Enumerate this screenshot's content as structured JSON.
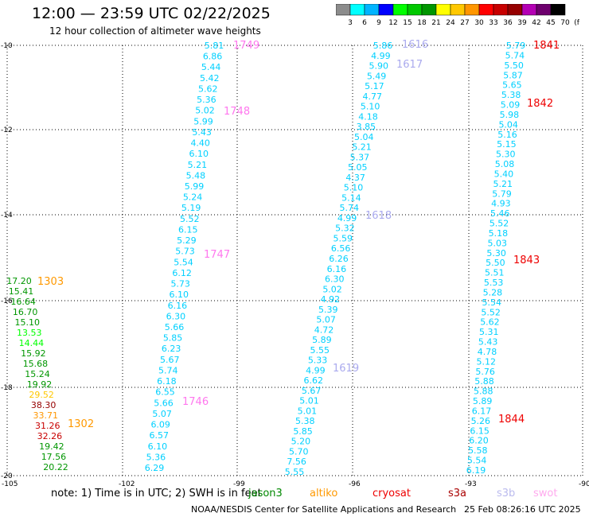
{
  "title": "12:00 — 23:59 UTC 02/22/2025",
  "subtitle": "12 hour collection of altimeter wave heights",
  "scale": {
    "labels": [
      "3",
      "6",
      "9",
      "12",
      "15",
      "18",
      "21",
      "24",
      "27",
      "30",
      "33",
      "36",
      "39",
      "42",
      "45",
      "70",
      "(ft)"
    ],
    "colors": [
      "#8c8c8c",
      "#00ffff",
      "#00b4ff",
      "#0000ff",
      "#00ff00",
      "#00c800",
      "#009600",
      "#ffff00",
      "#ffc800",
      "#ff9600",
      "#ff0000",
      "#c80000",
      "#960000",
      "#b400b4",
      "#6e006e",
      "#000000"
    ]
  },
  "axes": {
    "x_ticks": [
      "-105",
      "-102",
      "-99",
      "-96",
      "-93",
      "-90"
    ],
    "y_ticks": [
      "-10",
      "-12",
      "-14",
      "-16",
      "-18",
      "-20"
    ]
  },
  "tracks": [
    {
      "id": "t1749",
      "values": [
        "5.81",
        "6.86",
        "5.44",
        "5.42",
        "5.62",
        "5.36",
        "5.02",
        "5.99",
        "5.43",
        "4.40",
        "6.10",
        "5.21",
        "5.48",
        "5.99",
        "5.24",
        "5.19",
        "5.52",
        "6.15",
        "5.29",
        "5.73",
        "5.54",
        "6.12",
        "5.73",
        "6.10",
        "6.16",
        "6.30",
        "5.66",
        "5.85",
        "6.23",
        "5.67",
        "5.74",
        "6.18",
        "6.55",
        "5.66",
        "5.07",
        "6.09",
        "6.57",
        "6.10",
        "5.36",
        "6.29"
      ]
    },
    {
      "id": "t1616",
      "values": [
        "5.86",
        "4.99",
        "5.90",
        "5.49",
        "5.17",
        "4.77",
        "5.10",
        "4.18",
        "3.85",
        "5.04",
        "5.21",
        "5.37",
        "5.05",
        "4.37",
        "5.10",
        "5.14",
        "5.74",
        "4.99",
        "5.32",
        "5.59",
        "6.56",
        "6.26",
        "6.16",
        "6.30",
        "5.02",
        "4.92",
        "5.39",
        "5.07",
        "4.72",
        "5.89",
        "5.55",
        "5.33",
        "4.99",
        "6.62",
        "5.67",
        "5.01",
        "5.01",
        "5.38",
        "5.85",
        "5.20",
        "5.70",
        "7.56",
        "5.55"
      ]
    },
    {
      "id": "t1841",
      "values": [
        "5.79",
        "5.74",
        "5.50",
        "5.87",
        "5.65",
        "5.38",
        "5.09",
        "5.98",
        "5.04",
        "5.16",
        "5.15",
        "5.30",
        "5.08",
        "5.40",
        "5.21",
        "5.79",
        "4.93",
        "5.46",
        "5.52",
        "5.18",
        "5.03",
        "5.30",
        "5.50",
        "5.51",
        "5.53",
        "5.28",
        "5.54",
        "5.52",
        "5.62",
        "5.31",
        "5.43",
        "4.78",
        "5.12",
        "5.76",
        "5.88",
        "5.88",
        "5.89",
        "6.17",
        "5.26",
        "6.15",
        "6.20",
        "5.58",
        "5.54",
        "6.19"
      ]
    },
    {
      "id": "t1303",
      "values": [
        "17.20",
        "15.41",
        "16.64",
        "16.70",
        "15.10",
        "13.53",
        "14.44",
        "15.92",
        "15.68",
        "15.24",
        "19.92",
        "29.52",
        "38.30",
        "33.71",
        "31.26",
        "32.26",
        "19.42",
        "17.56",
        "20.22"
      ],
      "colors": [
        "#009600",
        "#009600",
        "#009600",
        "#009600",
        "#009600",
        "#00ff00",
        "#00ff00",
        "#009600",
        "#009600",
        "#009600",
        "#009600",
        "#ffc800",
        "#960000",
        "#ff9600",
        "#c80000",
        "#c80000",
        "#009600",
        "#009600",
        "#009600"
      ]
    }
  ],
  "pass_labels": [
    {
      "text": "1749",
      "color": "#ff77ee"
    },
    {
      "text": "1748",
      "color": "#ff77ee"
    },
    {
      "text": "1747",
      "color": "#ff77ee"
    },
    {
      "text": "1746",
      "color": "#ff77ee"
    },
    {
      "text": "1616",
      "color": "#aaaaee"
    },
    {
      "text": "1617",
      "color": "#aaaaee"
    },
    {
      "text": "1618",
      "color": "#aaaaee"
    },
    {
      "text": "1619",
      "color": "#aaaaee"
    },
    {
      "text": "1841",
      "color": "#ee0000"
    },
    {
      "text": "1842",
      "color": "#ee0000"
    },
    {
      "text": "1843",
      "color": "#ee0000"
    },
    {
      "text": "1844",
      "color": "#ee0000"
    },
    {
      "text": "1303",
      "color": "#ff9900"
    },
    {
      "text": "1302",
      "color": "#ff9900"
    }
  ],
  "track_color": "#00d0ff",
  "note": "note:  1) Time is in UTC;  2) SWH is in feet",
  "legend": [
    {
      "name": "jason3",
      "color": "#008800"
    },
    {
      "name": "altiko",
      "color": "#ff9900"
    },
    {
      "name": "cryosat",
      "color": "#ee0000"
    },
    {
      "name": "s3a",
      "color": "#aa0000"
    },
    {
      "name": "s3b",
      "color": "#bbbbee"
    },
    {
      "name": "swot",
      "color": "#ffaaee"
    }
  ],
  "credit": "NOAA/NESDIS Center for Satellite Applications and Research",
  "timestamp": "25 Feb 08:26:16 UTC 2025"
}
